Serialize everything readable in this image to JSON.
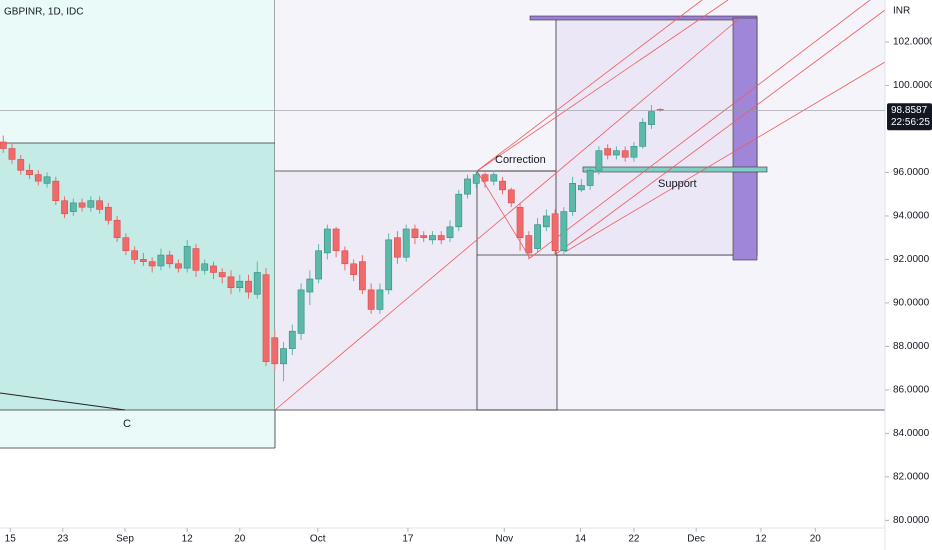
{
  "chart_data": {
    "type": "candlestick",
    "title": "GBPINR, 1D, IDC",
    "y_unit": "INR",
    "up_color": "#5cb8a8",
    "down_color": "#ef6b6b",
    "x": [
      0,
      1,
      2,
      3,
      4,
      5,
      6,
      7,
      8,
      9,
      10,
      11,
      12,
      13,
      14,
      15,
      16,
      17,
      18,
      19,
      20,
      21,
      22,
      23,
      24,
      25,
      26,
      27,
      28,
      29,
      30,
      31,
      32,
      33,
      34,
      35,
      36,
      37,
      38,
      39,
      40,
      41,
      42,
      43,
      44,
      45,
      46,
      47,
      48,
      49,
      50,
      51,
      52,
      53,
      54,
      55,
      56,
      57,
      58,
      59,
      60,
      61,
      62,
      63,
      64,
      65,
      66,
      67,
      68,
      69,
      70,
      71,
      72,
      73,
      74,
      75
    ],
    "open": [
      97.4,
      97.1,
      96.6,
      96.1,
      95.9,
      95.5,
      95.6,
      94.7,
      94.2,
      94.6,
      94.4,
      94.7,
      94.4,
      93.8,
      93.0,
      92.4,
      92.0,
      91.9,
      91.7,
      92.2,
      91.8,
      91.6,
      92.5,
      91.5,
      91.7,
      91.4,
      91.2,
      90.7,
      91.0,
      90.4,
      91.3,
      88.4,
      87.2,
      87.9,
      88.6,
      90.5,
      91.1,
      92.3,
      93.4,
      92.4,
      91.8,
      91.9,
      90.6,
      89.7,
      90.6,
      93.0,
      92.1,
      93.4,
      93.1,
      92.9,
      93.1,
      93.0,
      93.5,
      95.0,
      95.5,
      95.9,
      95.6,
      95.6,
      95.2,
      94.4,
      93.1,
      92.5,
      93.5,
      94.1,
      92.4,
      94.2,
      95.2,
      95.4,
      96.1,
      97.1,
      96.8,
      97.0,
      96.7,
      97.2,
      98.2,
      98.9
    ],
    "high": [
      97.7,
      97.3,
      96.8,
      96.4,
      96.1,
      96.0,
      95.8,
      94.9,
      94.8,
      94.8,
      94.9,
      94.9,
      94.6,
      94.0,
      93.2,
      92.6,
      92.3,
      92.1,
      92.5,
      92.4,
      92.0,
      92.9,
      92.7,
      92.0,
      91.9,
      91.6,
      91.5,
      91.3,
      91.3,
      91.9,
      91.6,
      88.8,
      88.2,
      89.0,
      90.9,
      91.5,
      92.7,
      93.6,
      93.5,
      92.6,
      92.0,
      92.2,
      90.9,
      90.9,
      93.2,
      93.3,
      93.6,
      93.6,
      93.3,
      93.3,
      93.3,
      93.8,
      95.2,
      95.9,
      96.1,
      96.0,
      96.1,
      95.8,
      95.3,
      94.6,
      93.3,
      93.9,
      94.3,
      94.3,
      94.4,
      95.8,
      95.7,
      96.3,
      97.2,
      97.3,
      97.2,
      97.2,
      97.4,
      98.5,
      99.1,
      98.95
    ],
    "low": [
      96.9,
      96.4,
      95.9,
      95.7,
      95.4,
      95.3,
      94.5,
      93.9,
      94.0,
      94.2,
      94.2,
      94.1,
      93.6,
      92.8,
      92.2,
      91.8,
      91.7,
      91.4,
      91.5,
      91.6,
      91.4,
      91.4,
      91.2,
      91.3,
      91.1,
      90.9,
      90.4,
      90.5,
      90.2,
      90.2,
      87.1,
      86.9,
      86.4,
      87.6,
      88.3,
      89.9,
      90.9,
      92.0,
      92.1,
      91.5,
      91.0,
      90.4,
      89.5,
      89.5,
      90.4,
      91.8,
      91.9,
      92.7,
      92.8,
      92.7,
      92.7,
      92.8,
      93.3,
      94.8,
      95.3,
      95.3,
      95.4,
      95.0,
      94.4,
      92.4,
      92.0,
      92.3,
      93.3,
      92.2,
      92.2,
      94.0,
      95.1,
      95.2,
      95.9,
      96.6,
      96.6,
      96.5,
      96.5,
      97.1,
      98.0,
      98.8
    ],
    "close": [
      97.1,
      96.6,
      96.1,
      95.9,
      95.6,
      95.8,
      94.7,
      94.1,
      94.6,
      94.4,
      94.7,
      94.3,
      93.8,
      93.0,
      92.4,
      92.0,
      91.9,
      91.7,
      92.2,
      91.8,
      91.6,
      92.6,
      91.5,
      91.8,
      91.4,
      91.2,
      90.7,
      91.0,
      90.5,
      91.4,
      87.3,
      87.2,
      87.9,
      88.7,
      90.6,
      91.1,
      92.4,
      93.4,
      92.4,
      91.8,
      91.3,
      90.6,
      89.7,
      90.6,
      92.9,
      92.1,
      93.4,
      93.0,
      93.0,
      93.1,
      92.9,
      93.5,
      95.0,
      95.7,
      95.9,
      95.6,
      95.9,
      95.2,
      94.6,
      93.0,
      92.3,
      93.6,
      94.0,
      92.4,
      94.2,
      95.5,
      95.4,
      96.1,
      97.0,
      96.8,
      97.0,
      96.7,
      97.2,
      98.3,
      98.8,
      98.86
    ],
    "xlim": [
      -0.37,
      100.66
    ],
    "xticks": [
      {
        "value": 0.8,
        "label": "15"
      },
      {
        "value": 6.8,
        "label": "23"
      },
      {
        "value": 13.9,
        "label": "Sep"
      },
      {
        "value": 21.0,
        "label": "12"
      },
      {
        "value": 27.0,
        "label": "20"
      },
      {
        "value": 35.9,
        "label": "Oct"
      },
      {
        "value": 46.2,
        "label": "17"
      },
      {
        "value": 57.2,
        "label": "Nov"
      },
      {
        "value": 65.9,
        "label": "14"
      },
      {
        "value": 72.0,
        "label": "22"
      },
      {
        "value": 79.1,
        "label": "Dec"
      },
      {
        "value": 86.5,
        "label": "12"
      },
      {
        "value": 92.7,
        "label": "20"
      }
    ],
    "ylim": [
      79.65,
      103.93
    ],
    "yticks": [
      {
        "value": 80,
        "label": "80.0000"
      },
      {
        "value": 82,
        "label": "82.0000"
      },
      {
        "value": 84,
        "label": "84.0000"
      },
      {
        "value": 86,
        "label": "86.0000"
      },
      {
        "value": 88,
        "label": "88.0000"
      },
      {
        "value": 90,
        "label": "90.0000"
      },
      {
        "value": 92,
        "label": "92.0000"
      },
      {
        "value": 94,
        "label": "94.0000"
      },
      {
        "value": 96,
        "label": "96.0000"
      },
      {
        "value": 100,
        "label": "100.0000"
      },
      {
        "value": 102,
        "label": "102.0000"
      }
    ],
    "last_price": 98.8587,
    "countdown": "22:56:25",
    "annotations": [
      "Correction",
      "Support",
      "C"
    ]
  }
}
